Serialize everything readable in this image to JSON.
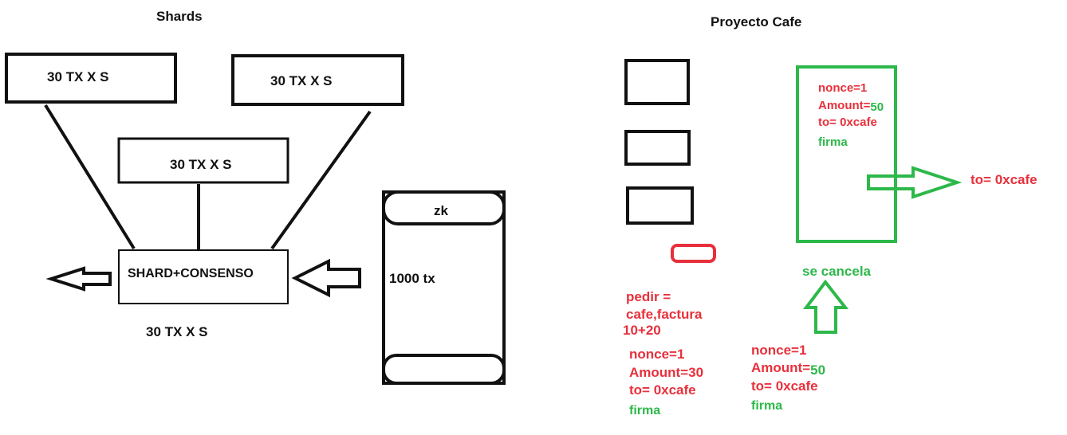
{
  "colors": {
    "ink": "#111111",
    "red": "#e8303c",
    "green": "#2db84a",
    "background": "#ffffff"
  },
  "shards": {
    "title": "Shards",
    "box_top_left": "30 TX X S",
    "box_top_right": "30 TX X S",
    "box_middle": "30 TX X S",
    "center_box": "SHARD+CONSENSO",
    "below_center": "30 TX X S",
    "cylinder_label": "zk",
    "cylinder_value": "1000 tx"
  },
  "cafe": {
    "title": "Proyecto Cafe",
    "pedir": [
      "pedir =",
      "cafe,factura",
      "10+20"
    ],
    "tx_left": {
      "nonce": "nonce=1",
      "amount_label": "Amount=",
      "amount_value": "30",
      "to": "to= 0xcafe",
      "firma": "firma"
    },
    "tx_box": {
      "nonce": "nonce=1",
      "amount_label": "Amount=",
      "amount_value": "50",
      "to": "to= 0xcafe",
      "firma": "firma"
    },
    "arrow_target": "to= 0xcafe",
    "cancel_label": "se cancela",
    "tx_bottom": {
      "nonce": "nonce=1",
      "amount_label": "Amount=",
      "amount_value": "50",
      "to": "to= 0xcafe",
      "firma": "firma"
    }
  }
}
